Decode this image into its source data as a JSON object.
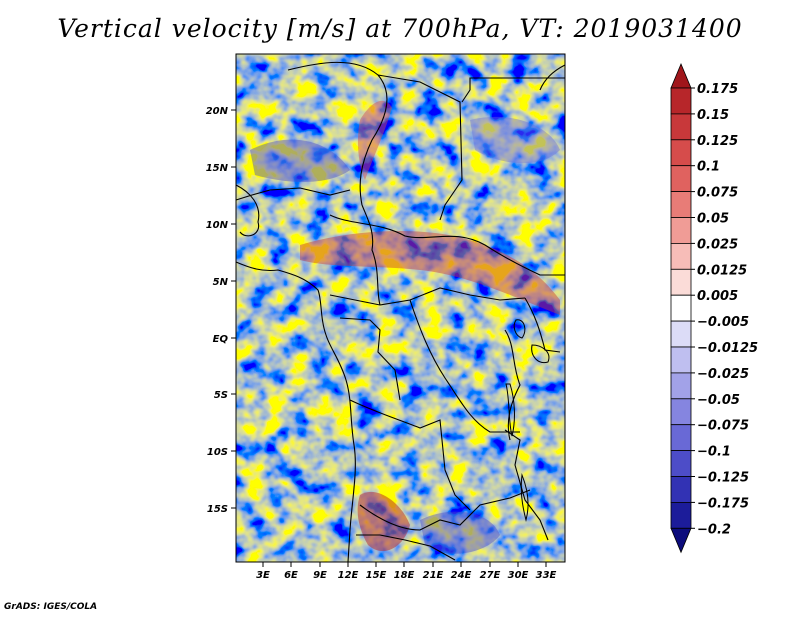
{
  "title": "Vertical velocity [m/s] at 700hPa, VT: 2019031400",
  "credit": "GrADS: IGES/COLA",
  "map": {
    "field": "Vertical velocity",
    "units": "m/s",
    "level": "700hPa",
    "valid_time": "2019031400",
    "lat_labels": [
      "20N",
      "15N",
      "10N",
      "5N",
      "EQ",
      "5S",
      "10S",
      "15S"
    ],
    "lon_labels": [
      "3E",
      "6E",
      "9E",
      "12E",
      "15E",
      "18E",
      "21E",
      "24E",
      "27E",
      "30E",
      "33E"
    ]
  },
  "colorbar": {
    "labels": [
      "0.175",
      "0.15",
      "0.125",
      "0.1",
      "0.075",
      "0.05",
      "0.025",
      "0.0125",
      "0.005",
      "-0.005",
      "-0.0125",
      "-0.025",
      "-0.05",
      "-0.075",
      "-0.1",
      "-0.125",
      "-0.175",
      "-0.2"
    ],
    "colors": [
      "#a0161b",
      "#b7262a",
      "#c8383a",
      "#d64c4b",
      "#e0625f",
      "#e87c77",
      "#f09c96",
      "#f7bdb8",
      "#fbdcd8",
      "#ffffff",
      "#dcdcf7",
      "#bfbff0",
      "#a2a2e8",
      "#8585e0",
      "#6969d6",
      "#4d4dc8",
      "#3232b4",
      "#1c1c9a",
      "#0c0c7c"
    ]
  }
}
